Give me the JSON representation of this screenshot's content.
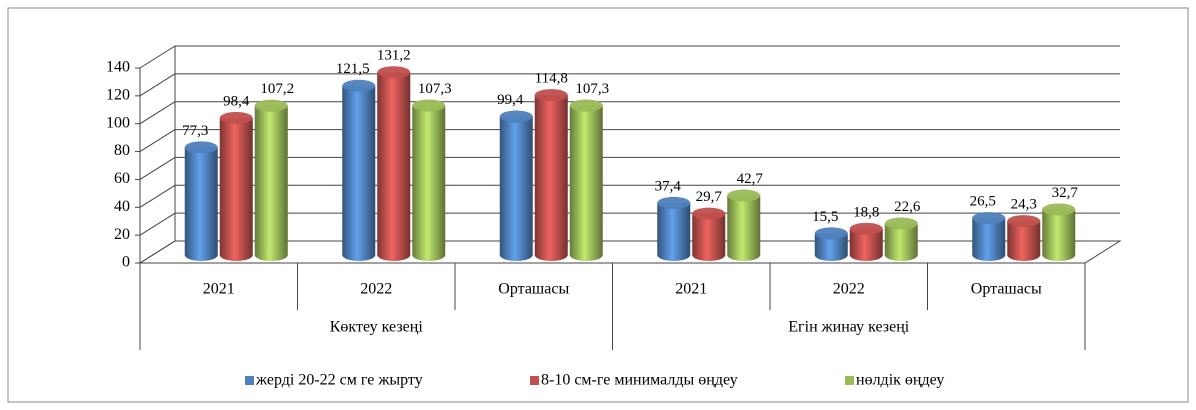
{
  "chart_data": {
    "type": "bar3d",
    "groups": [
      "Көктеу кезеңі",
      "Егін жинау кезеңі"
    ],
    "categories": [
      "2021",
      "2022",
      "Орташасы",
      "2021",
      "2022",
      "Орташасы"
    ],
    "series": [
      {
        "name": "жерді 20-22 см ге жырту",
        "color": "#4f81bd",
        "values": [
          77.3,
          121.5,
          99.4,
          37.4,
          15.5,
          26.5
        ],
        "value_labels": [
          "77,3",
          "121,5",
          "99,4",
          "37,4",
          "15,5",
          "26,5"
        ]
      },
      {
        "name": "8-10 см-ге минималды өңдеу",
        "color": "#c0504d",
        "values": [
          98.4,
          131.2,
          114.8,
          29.7,
          18.8,
          24.3
        ],
        "value_labels": [
          "98,4",
          "131,2",
          "114,8",
          "29,7",
          "18,8",
          "24,3"
        ]
      },
      {
        "name": "нөлдік өңдеу",
        "color": "#9bbb59",
        "values": [
          107.2,
          107.3,
          107.3,
          42.7,
          22.6,
          32.7
        ],
        "value_labels": [
          "107,2",
          "107,3",
          "107,3",
          "42,7",
          "22,6",
          "32,7"
        ]
      }
    ],
    "ylim": [
      0,
      140
    ],
    "yticks": [
      0,
      20,
      40,
      60,
      80,
      100,
      120,
      140
    ],
    "grid": true,
    "legend": "bottom"
  }
}
